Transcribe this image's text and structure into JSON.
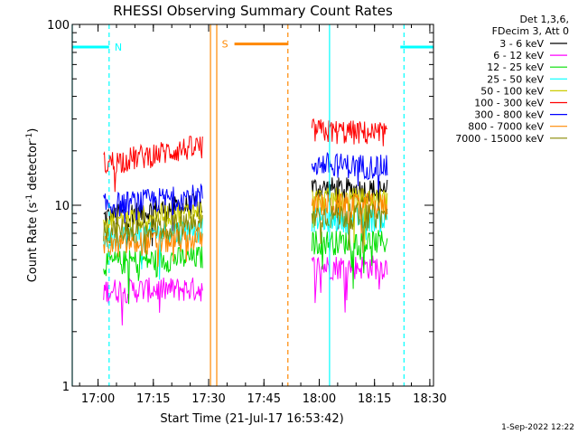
{
  "chart_data": {
    "type": "line",
    "title": "RHESSI Observing Summary Count Rates",
    "xlabel": "Start Time (21-Jul-17 16:53:42)",
    "ylabel_main": "Count Rate (s",
    "ylabel_sup1": "-1",
    "ylabel_mid": " detector",
    "ylabel_sup2": "-1",
    "ylabel_end": ")",
    "x_range_min": [
      0,
      98
    ],
    "y_range": [
      1,
      100
    ],
    "y_scale": "log",
    "x_ticks": [
      {
        "value": 7,
        "label": "17:00"
      },
      {
        "value": 22,
        "label": "17:15"
      },
      {
        "value": 37,
        "label": "17:30"
      },
      {
        "value": 52,
        "label": "17:45"
      },
      {
        "value": 67,
        "label": "18:00"
      },
      {
        "value": 82,
        "label": "18:15"
      },
      {
        "value": 97,
        "label": "18:30"
      }
    ],
    "y_ticks": [
      {
        "value": 1,
        "label": "1"
      },
      {
        "value": 10,
        "label": "10"
      },
      {
        "value": 100,
        "label": "100"
      }
    ],
    "footer_date": "1-Sep-2022 12:22",
    "legend_header": [
      "Det 1,3,6,",
      "FDecim 3, Att 0"
    ],
    "series": [
      {
        "name": "3 - 6 keV",
        "color": "#000000",
        "seg1": {
          "start": 8.5,
          "end": 35.5,
          "base": 8.6,
          "trend": 0.18
        },
        "seg2": {
          "start": 65,
          "end": 85.5,
          "base": 12.5,
          "trend": -0.05
        }
      },
      {
        "name": "6 - 12 keV",
        "color": "#ff00ff",
        "seg1": {
          "start": 8.5,
          "end": 35.5,
          "base": 3.4,
          "trend": 0.02
        },
        "seg2": {
          "start": 65,
          "end": 85.5,
          "base": 4.6,
          "trend": 0.0
        }
      },
      {
        "name": "12 - 25 keV",
        "color": "#00dd00",
        "seg1": {
          "start": 8.5,
          "end": 35.5,
          "base": 4.8,
          "trend": 0.08
        },
        "seg2": {
          "start": 65,
          "end": 85.5,
          "base": 6.3,
          "trend": 0.0
        }
      },
      {
        "name": "25 - 50 keV",
        "color": "#00ffff",
        "seg1": {
          "start": 8.5,
          "end": 35.5,
          "base": 6.6,
          "trend": 0.12
        },
        "seg2": {
          "start": 65,
          "end": 85.5,
          "base": 8.4,
          "trend": 0.0
        }
      },
      {
        "name": "50 - 100 keV",
        "color": "#cccc00",
        "seg1": {
          "start": 8.5,
          "end": 35.5,
          "base": 8.2,
          "trend": 0.14
        },
        "seg2": {
          "start": 65,
          "end": 85.5,
          "base": 10.8,
          "trend": 0.0
        }
      },
      {
        "name": "100 - 300 keV",
        "color": "#ff0000",
        "seg1": {
          "start": 8.5,
          "end": 35.5,
          "base": 17.0,
          "trend": 0.26
        },
        "seg2": {
          "start": 65,
          "end": 85.5,
          "base": 26.0,
          "trend": -0.05
        }
      },
      {
        "name": "300 - 800 keV",
        "color": "#0000ff",
        "seg1": {
          "start": 8.5,
          "end": 35.5,
          "base": 10.0,
          "trend": 0.14
        },
        "seg2": {
          "start": 65,
          "end": 85.5,
          "base": 17.0,
          "trend": -0.05
        }
      },
      {
        "name": "800 - 7000 keV",
        "color": "#ff8800",
        "seg1": {
          "start": 8.5,
          "end": 35.5,
          "base": 6.0,
          "trend": 0.1
        },
        "seg2": {
          "start": 65,
          "end": 85.5,
          "base": 10.0,
          "trend": 0.0
        }
      },
      {
        "name": "7000 - 15000 keV",
        "color": "#888800",
        "seg1": {
          "start": 8.5,
          "end": 35.5,
          "base": 7.2,
          "trend": 0.1
        },
        "seg2": {
          "start": 65,
          "end": 85.5,
          "base": 8.8,
          "trend": 0.0
        }
      }
    ],
    "night_bars": [
      {
        "start": 0,
        "end": 10,
        "y": 75,
        "color": "#00ffff",
        "label": "N"
      },
      {
        "start": 89,
        "end": 98,
        "y": 75,
        "color": "#00ffff",
        "label": ""
      }
    ],
    "saa_bars": [
      {
        "start": 44,
        "end": 58.5,
        "y": 78,
        "color": "#ff8800",
        "label": "S"
      }
    ],
    "vertical_lines": [
      {
        "x": 0.0,
        "color": "#00ffff",
        "style": "solid"
      },
      {
        "x": 10.0,
        "color": "#00ffff",
        "style": "dashed"
      },
      {
        "x": 37.5,
        "color": "#ff8800",
        "style": "solid"
      },
      {
        "x": 39.2,
        "color": "#ff8800",
        "style": "solid"
      },
      {
        "x": 58.5,
        "color": "#ff8800",
        "style": "dashed"
      },
      {
        "x": 69.8,
        "color": "#00ffff",
        "style": "solid"
      },
      {
        "x": 90.0,
        "color": "#00ffff",
        "style": "dashed"
      }
    ]
  }
}
